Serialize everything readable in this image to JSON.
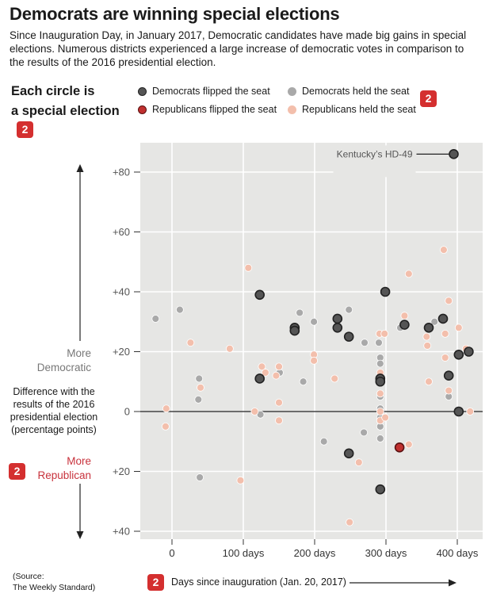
{
  "title": "Democrats are winning special elections",
  "subtitle": "Since Inauguration Day, in January 2017, Democratic candidates have made big gains in special elections. Numerous districts experienced a large increase of democratic votes in comparison to the results of the 2016 presidential election.",
  "circle_heading": [
    "Each circle is",
    "a special election"
  ],
  "badge_text": "2",
  "legend": [
    {
      "label": "Democrats flipped the seat",
      "color": "#555555",
      "stroke": "#222222"
    },
    {
      "label": "Democrats held the seat",
      "color": "#a9a9a9",
      "stroke": "#a9a9a9"
    },
    {
      "label": "Republicans flipped the seat",
      "color": "#c0302f",
      "stroke": "#5a1010"
    },
    {
      "label": "Republicans held the seat",
      "color": "#f3bfac",
      "stroke": "#f3bfac"
    }
  ],
  "y_more_dem": [
    "More",
    "Democratic"
  ],
  "y_description": "Difference with the results of the 2016 presidential election (percentage points)",
  "y_more_rep": [
    "More",
    "Republican"
  ],
  "source": [
    "(Source:",
    "The Weekly Standard)"
  ],
  "x_axis_title": "Days since inauguration (Jan. 20, 2017)",
  "annotation": "Kentucky’s HD-49",
  "chart_data": {
    "type": "scatter",
    "xlabel": "Days since inauguration (Jan. 20, 2017)",
    "ylabel": "Difference with the results of the 2016 presidential election (percentage points)",
    "xlim": [
      -45,
      435
    ],
    "ylim": [
      -44,
      90
    ],
    "x_ticks": [
      0,
      100,
      200,
      300,
      400
    ],
    "x_tick_labels": [
      "0",
      "100 days",
      "200 days",
      "300 days",
      "400 days"
    ],
    "y_ticks": [
      80,
      60,
      40,
      20,
      0,
      -20,
      -40
    ],
    "y_tick_labels": [
      "+80",
      "+60",
      "+40",
      "+20",
      "0",
      "+20",
      "+40"
    ],
    "grid": true,
    "series": [
      {
        "name": "Democrats flipped the seat",
        "points": [
          [
            395,
            86
          ],
          [
            123,
            39
          ],
          [
            299,
            40
          ],
          [
            232,
            31
          ],
          [
            172,
            28
          ],
          [
            172,
            27
          ],
          [
            232,
            28
          ],
          [
            248,
            25
          ],
          [
            326,
            29
          ],
          [
            360,
            28
          ],
          [
            380,
            31
          ],
          [
            402,
            19
          ],
          [
            416,
            20
          ],
          [
            292,
            11
          ],
          [
            292,
            10
          ],
          [
            123,
            11
          ],
          [
            388,
            12
          ],
          [
            402,
            0
          ],
          [
            248,
            -14
          ],
          [
            292,
            -26
          ]
        ]
      },
      {
        "name": "Democrats held the seat",
        "points": [
          [
            -23,
            31
          ],
          [
            11,
            34
          ],
          [
            38,
            11
          ],
          [
            37,
            4
          ],
          [
            39,
            -22
          ],
          [
            124,
            -1
          ],
          [
            151,
            13
          ],
          [
            179,
            33
          ],
          [
            199,
            30
          ],
          [
            184,
            10
          ],
          [
            213,
            -10
          ],
          [
            248,
            34
          ],
          [
            270,
            23
          ],
          [
            290,
            23
          ],
          [
            292,
            18
          ],
          [
            292,
            16
          ],
          [
            292,
            12
          ],
          [
            292,
            5
          ],
          [
            292,
            1
          ],
          [
            292,
            -2
          ],
          [
            292,
            -5
          ],
          [
            292,
            -9
          ],
          [
            269,
            -7
          ],
          [
            320,
            28
          ],
          [
            368,
            30
          ],
          [
            388,
            5
          ]
        ]
      },
      {
        "name": "Republicans flipped the seat",
        "points": [
          [
            319,
            -12
          ]
        ]
      },
      {
        "name": "Republicans held the seat",
        "points": [
          [
            107,
            48
          ],
          [
            26,
            23
          ],
          [
            -8,
            1
          ],
          [
            -9,
            -5
          ],
          [
            40,
            8
          ],
          [
            81,
            21
          ],
          [
            96,
            -23
          ],
          [
            116,
            0
          ],
          [
            126,
            15
          ],
          [
            131,
            13
          ],
          [
            146,
            12
          ],
          [
            150,
            15
          ],
          [
            150,
            3
          ],
          [
            150,
            -3
          ],
          [
            199,
            19
          ],
          [
            199,
            17
          ],
          [
            228,
            11
          ],
          [
            262,
            -17
          ],
          [
            249,
            -37
          ],
          [
            291,
            26
          ],
          [
            298,
            26
          ],
          [
            292,
            13
          ],
          [
            292,
            6
          ],
          [
            292,
            0
          ],
          [
            292,
            -3
          ],
          [
            299,
            -2
          ],
          [
            326,
            32
          ],
          [
            332,
            46
          ],
          [
            332,
            -11
          ],
          [
            358,
            22
          ],
          [
            357,
            25
          ],
          [
            360,
            10
          ],
          [
            381,
            54
          ],
          [
            383,
            26
          ],
          [
            383,
            18
          ],
          [
            388,
            37
          ],
          [
            388,
            7
          ],
          [
            402,
            28
          ],
          [
            412,
            21
          ],
          [
            418,
            0
          ]
        ]
      }
    ],
    "annotations": [
      {
        "text": "Kentucky’s HD-49",
        "x": 395,
        "y": 86
      }
    ]
  }
}
